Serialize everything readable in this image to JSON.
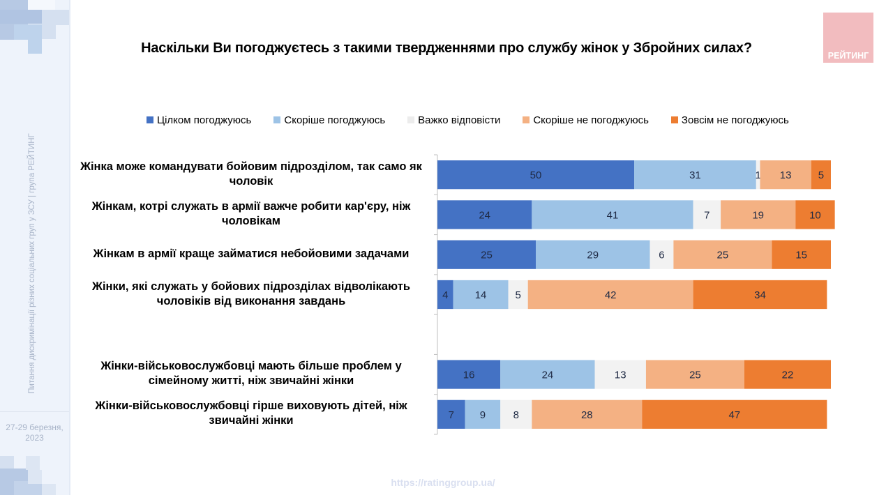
{
  "sidebar": {
    "vertical_text": "Питання дискримінації різних соціальних груп у ЗСУ  |  група РЕЙТИНГ",
    "date_line1": "27-29 березня,",
    "date_line2": "2023"
  },
  "logo": {
    "text": "РЕЙТИНГ"
  },
  "footer": {
    "url": "https://ratinggroup.ua/"
  },
  "chart_data": {
    "type": "bar",
    "orientation": "horizontal",
    "stacked": true,
    "title": "Наскільки Ви погоджуєтесь з такими твердженнями про службу жінок у Збройних силах?",
    "xlabel": "",
    "ylabel": "",
    "xlim": [
      0,
      100
    ],
    "legend_position": "top",
    "grid": false,
    "categories": [
      "Жінка може командувати бойовим підрозділом, так само як чоловік",
      "Жінкам, котрі служать в армії важче робити кар'єру, ніж чоловікам",
      "Жінкам в армії краще займатися небойовими задачами",
      "Жінки, які служать у бойових підрозділах відволікають чоловіків від виконання завдань",
      "",
      "Жінки-військовослужбовці мають більше проблем у сімейному житті, ніж звичайні жінки",
      "Жінки-військовослужбовці гірше виховують дітей, ніж звичайні жінки"
    ],
    "series": [
      {
        "name": "Цілком погоджуюсь",
        "color": "#4472c4",
        "values": [
          50,
          24,
          25,
          4,
          null,
          16,
          7
        ]
      },
      {
        "name": "Скоріше погоджуюсь",
        "color": "#9dc3e6",
        "values": [
          31,
          41,
          29,
          14,
          null,
          24,
          9
        ]
      },
      {
        "name": "Важко відповісти",
        "color": "#f2f2f2",
        "values": [
          1,
          7,
          6,
          5,
          null,
          13,
          8
        ]
      },
      {
        "name": "Скоріше не погоджуюсь",
        "color": "#f4b183",
        "values": [
          13,
          19,
          25,
          42,
          null,
          25,
          28
        ]
      },
      {
        "name": "Зовсім не погоджуюсь",
        "color": "#ed7d31",
        "values": [
          5,
          10,
          15,
          34,
          null,
          22,
          47
        ]
      }
    ]
  }
}
